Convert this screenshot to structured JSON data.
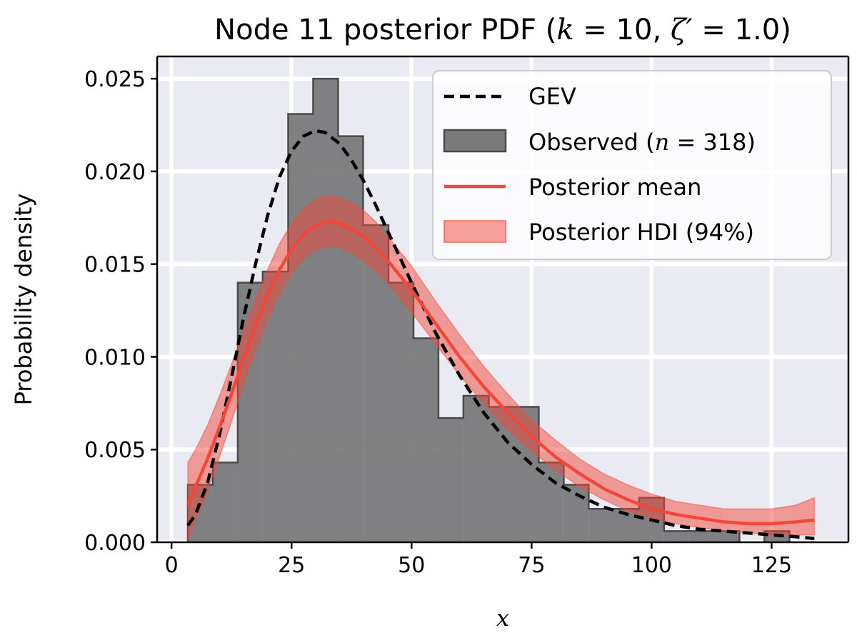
{
  "chart_data": {
    "type": "histogram-with-density",
    "title": {
      "prefix": "Node 11 posterior PDF (",
      "k_symbol": "k",
      "k_value": " = 10, ",
      "zeta_symbol": "ζ′",
      "zeta_value": " = 1.0)"
    },
    "xlabel": "x",
    "ylabel": "Probability density",
    "xlim": [
      -3,
      141
    ],
    "ylim": [
      0,
      0.0262
    ],
    "xticks": [
      0,
      25,
      50,
      75,
      100,
      125
    ],
    "xtick_labels": [
      "0",
      "25",
      "50",
      "75",
      "100",
      "125"
    ],
    "yticks": [
      0,
      0.005,
      0.01,
      0.015,
      0.02,
      0.025
    ],
    "ytick_labels": [
      "0.000",
      "0.005",
      "0.010",
      "0.015",
      "0.020",
      "0.025"
    ],
    "grid": true,
    "legend_position": "top-right",
    "legend": {
      "gev": "GEV",
      "observed_prefix": "Observed (",
      "observed_n_symbol": "n",
      "observed_n_value": " = 318)",
      "posterior_mean": "Posterior mean",
      "posterior_hdi": "Posterior HDI (94%)"
    },
    "histogram": {
      "bin_edges": [
        3.4,
        8.6,
        13.8,
        19.0,
        24.3,
        29.5,
        34.7,
        39.9,
        45.2,
        50.4,
        55.6,
        60.8,
        66.1,
        71.3,
        76.5,
        81.7,
        86.9,
        92.2,
        97.4,
        102.6,
        107.8,
        113.1,
        118.3,
        123.5,
        128.7,
        133.9
      ],
      "density": [
        0.0031,
        0.0043,
        0.014,
        0.0146,
        0.0231,
        0.025,
        0.0219,
        0.0171,
        0.014,
        0.011,
        0.0067,
        0.0079,
        0.0073,
        0.0073,
        0.0043,
        0.0031,
        0.0018,
        0.0018,
        0.0024,
        0.0006,
        0.0006,
        0.0006,
        0.0,
        0.0006,
        0.0
      ]
    },
    "gev_curve": {
      "x": [
        3.4,
        5,
        7.5,
        10,
        12.5,
        15,
        17.5,
        20,
        22.5,
        25,
        27.5,
        30,
        32,
        35,
        37.5,
        40,
        42.5,
        45,
        47.5,
        50,
        55,
        60,
        65,
        70,
        75,
        80,
        85,
        90,
        95,
        100,
        105,
        110,
        115,
        120,
        125,
        130,
        133.9
      ],
      "y": [
        0.0009,
        0.0015,
        0.0032,
        0.0058,
        0.0089,
        0.0121,
        0.015,
        0.0176,
        0.0197,
        0.0211,
        0.0219,
        0.0222,
        0.0221,
        0.0215,
        0.0206,
        0.0195,
        0.0182,
        0.0168,
        0.0154,
        0.014,
        0.0113,
        0.009,
        0.007,
        0.0054,
        0.0042,
        0.0032,
        0.0025,
        0.0019,
        0.0015,
        0.0012,
        0.0009,
        0.0007,
        0.0006,
        0.0005,
        0.0004,
        0.0003,
        0.0002
      ]
    },
    "posterior_mean": {
      "x": [
        3.4,
        5,
        7.5,
        10,
        12.5,
        15,
        17.5,
        20,
        22.5,
        25,
        27.5,
        30,
        33,
        35,
        37.5,
        40,
        42.5,
        45,
        47.5,
        50,
        55,
        60,
        65,
        70,
        75,
        80,
        85,
        90,
        95,
        100,
        105,
        110,
        115,
        120,
        125,
        130,
        133.9
      ],
      "y": [
        0.002,
        0.003,
        0.0045,
        0.0062,
        0.008,
        0.0099,
        0.0117,
        0.0133,
        0.0147,
        0.0158,
        0.0166,
        0.0171,
        0.0173,
        0.0172,
        0.0169,
        0.0165,
        0.0159,
        0.0152,
        0.0144,
        0.0136,
        0.0118,
        0.01,
        0.0084,
        0.007,
        0.0057,
        0.0046,
        0.0037,
        0.0029,
        0.0023,
        0.0018,
        0.0015,
        0.0013,
        0.0011,
        0.001,
        0.001,
        0.0011,
        0.0012
      ]
    },
    "posterior_hdi": {
      "x": [
        3.4,
        5,
        7.5,
        10,
        12.5,
        15,
        17.5,
        20,
        22.5,
        25,
        27.5,
        30,
        33,
        35,
        37.5,
        40,
        42.5,
        45,
        47.5,
        50,
        55,
        60,
        65,
        70,
        75,
        80,
        85,
        90,
        95,
        100,
        105,
        110,
        115,
        120,
        125,
        130,
        133.9
      ],
      "lower": [
        0.0001,
        0.0012,
        0.0028,
        0.0046,
        0.0065,
        0.0085,
        0.0104,
        0.012,
        0.0134,
        0.0145,
        0.0153,
        0.0158,
        0.016,
        0.0159,
        0.0156,
        0.0152,
        0.0146,
        0.014,
        0.0132,
        0.0124,
        0.0107,
        0.009,
        0.0075,
        0.0061,
        0.0049,
        0.0039,
        0.003,
        0.0023,
        0.0017,
        0.0013,
        0.001,
        0.0008,
        0.0006,
        0.0005,
        0.0004,
        0.0004,
        0.0004
      ],
      "upper": [
        0.0043,
        0.005,
        0.0063,
        0.0079,
        0.0096,
        0.0114,
        0.0131,
        0.0147,
        0.0161,
        0.0172,
        0.018,
        0.0185,
        0.0187,
        0.0186,
        0.0183,
        0.0179,
        0.0173,
        0.0165,
        0.0157,
        0.0149,
        0.013,
        0.0112,
        0.0095,
        0.008,
        0.0066,
        0.0055,
        0.0045,
        0.0037,
        0.0031,
        0.0026,
        0.0022,
        0.002,
        0.0018,
        0.0018,
        0.0018,
        0.002,
        0.0024
      ]
    },
    "colors": {
      "plot_background": "#eaeaf2",
      "grid": "#ffffff",
      "histogram_fill": "#7a7a7b",
      "histogram_edge": "#4a4a4a",
      "gev": "#000000",
      "posterior_mean": "#f2473a",
      "posterior_hdi": "#f2473a"
    }
  }
}
